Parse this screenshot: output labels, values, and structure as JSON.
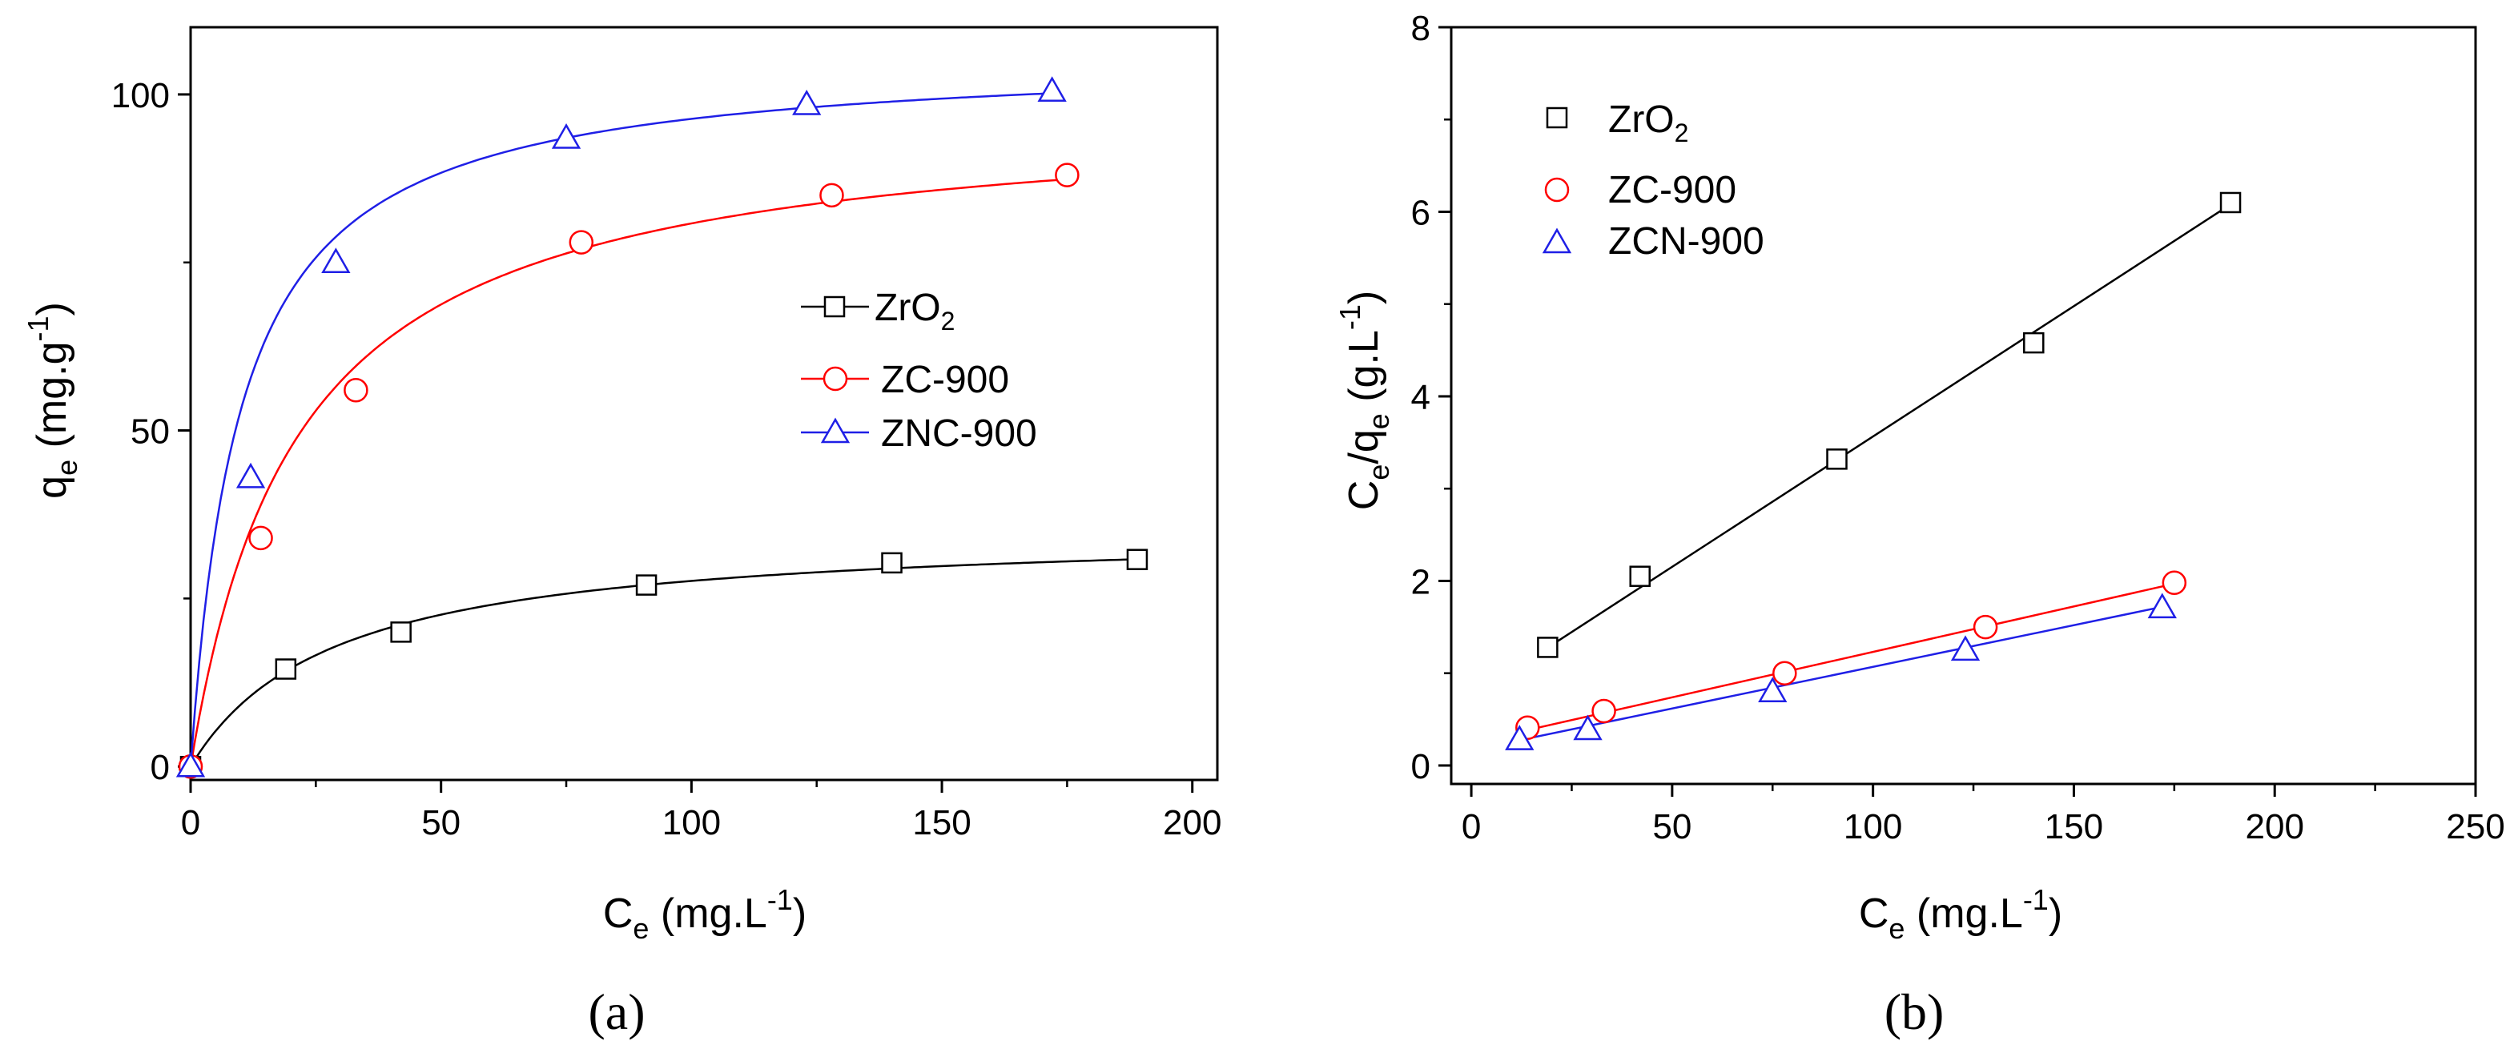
{
  "colors": {
    "black": "#000000",
    "red": "#ff0000",
    "blue": "#1f1fe6"
  },
  "chart_data": [
    {
      "type": "scatter",
      "panel_label": "(a)",
      "xlabel": {
        "main": "C",
        "sub": "e",
        "unit": " (mg.L",
        "sup": "-1",
        "close": ")"
      },
      "ylabel": {
        "main": "q",
        "sub": "e",
        "unit": " (mg.g",
        "sup": "-1",
        "close": ")"
      },
      "xlim": [
        0,
        205
      ],
      "ylim": [
        -2,
        110
      ],
      "xticks": [
        0,
        50,
        100,
        150,
        200
      ],
      "yticks": [
        0,
        50,
        100
      ],
      "legend_position": "center-right",
      "series": [
        {
          "name": "ZrO",
          "name_sub": "2",
          "marker": "square",
          "color": "#000000",
          "x": [
            0,
            19,
            42,
            91,
            140,
            189
          ],
          "y": [
            0,
            14.5,
            20,
            27,
            30.3,
            30.8
          ],
          "fit": {
            "model": "langmuir",
            "qmax": 35.5,
            "K": 0.035
          }
        },
        {
          "name": "ZC-900",
          "marker": "circle",
          "color": "#ff0000",
          "x": [
            0,
            14,
            33,
            78,
            128,
            175
          ],
          "y": [
            0,
            34,
            56,
            78,
            85,
            88
          ],
          "fit": {
            "model": "langmuir",
            "qmax": 98,
            "K": 0.047
          }
        },
        {
          "name": "ZNC-900",
          "marker": "triangle",
          "color": "#1f1fe6",
          "x": [
            0,
            12,
            29,
            75,
            123,
            172
          ],
          "y": [
            0,
            43,
            75,
            93.5,
            98.5,
            100.5
          ],
          "fit": {
            "model": "langmuir",
            "qmax": 106,
            "K": 0.1
          }
        }
      ]
    },
    {
      "type": "scatter",
      "panel_label": "(b)",
      "xlabel": {
        "main": "C",
        "sub": "e",
        "unit": " (mg.L",
        "sup": "-1",
        "close": ")"
      },
      "ylabel": {
        "main": "C",
        "sub": "e",
        "mid": "/q",
        "sub2": "e",
        "unit": " (g.L",
        "sup": "-1",
        "close": ")"
      },
      "xlim": [
        -5,
        250
      ],
      "ylim": [
        -0.2,
        8
      ],
      "xticks": [
        0,
        50,
        100,
        150,
        200,
        250
      ],
      "yticks": [
        0,
        2,
        4,
        6,
        8
      ],
      "legend_position": "top-left",
      "series": [
        {
          "name": "ZrO",
          "name_sub": "2",
          "marker": "square",
          "color": "#000000",
          "x": [
            19,
            42,
            91,
            140,
            189
          ],
          "y": [
            1.28,
            2.05,
            3.32,
            4.58,
            6.1
          ],
          "fit": {
            "model": "linear",
            "slope": 0.02825,
            "intercept": 0.74,
            "x_range": [
              19,
              189
            ]
          }
        },
        {
          "name": "ZC-900",
          "marker": "circle",
          "color": "#ff0000",
          "x": [
            14,
            33,
            78,
            128,
            175
          ],
          "y": [
            0.41,
            0.59,
            1.0,
            1.5,
            1.98
          ],
          "fit": {
            "model": "linear",
            "slope": 0.00985,
            "intercept": 0.246,
            "x_range": [
              14,
              175
            ]
          }
        },
        {
          "name": "ZCN-900",
          "marker": "triangle",
          "color": "#1f1fe6",
          "x": [
            12,
            29,
            75,
            123,
            172
          ],
          "y": [
            0.28,
            0.39,
            0.8,
            1.25,
            1.71
          ],
          "fit": {
            "model": "linear",
            "slope": 0.00903,
            "intercept": 0.166,
            "x_range": [
              12,
              172
            ]
          }
        }
      ]
    }
  ]
}
